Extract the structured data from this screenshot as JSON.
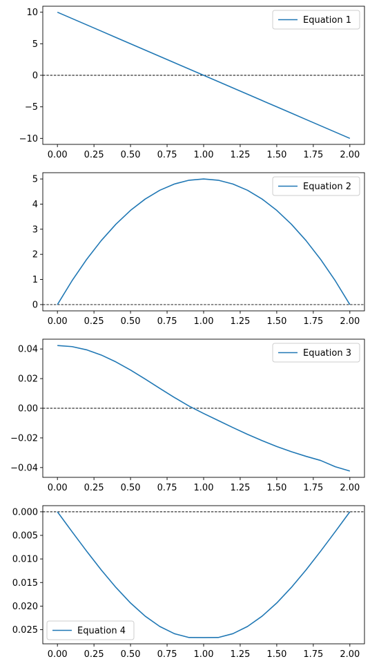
{
  "chart_data": [
    {
      "type": "line",
      "x": [
        0.0,
        0.1,
        0.2,
        0.3,
        0.4,
        0.5,
        0.6,
        0.7,
        0.8,
        0.9,
        1.0,
        1.1,
        1.2,
        1.3,
        1.4,
        1.5,
        1.6,
        1.7,
        1.8,
        1.9,
        2.0
      ],
      "series": [
        {
          "name": "Equation 1",
          "color": "#1f77b4",
          "values": [
            10.0,
            9.0,
            8.0,
            7.0,
            6.0,
            5.0,
            4.0,
            3.0,
            2.0,
            1.0,
            0.0,
            -1.0,
            -2.0,
            -3.0,
            -4.0,
            -5.0,
            -6.0,
            -7.0,
            -8.0,
            -9.0,
            -10.0
          ]
        }
      ],
      "reference_line": {
        "y": 0,
        "style": "dashed",
        "color": "#000000"
      },
      "ylim": [
        -10.95,
        10.95
      ],
      "xlim": [
        -0.1,
        2.1
      ],
      "yticks": [
        -10,
        -5,
        0,
        5,
        10
      ],
      "ytick_labels": [
        "−10",
        "−5",
        "0",
        "5",
        "10"
      ],
      "xticks": [
        0,
        0.25,
        0.5,
        0.75,
        1.0,
        1.25,
        1.5,
        1.75,
        2.0
      ],
      "xtick_labels": [
        "0.00",
        "0.25",
        "0.50",
        "0.75",
        "1.00",
        "1.25",
        "1.50",
        "1.75",
        "2.00"
      ],
      "legend_position": "top-right"
    },
    {
      "type": "line",
      "x": [
        0.0,
        0.1,
        0.2,
        0.3,
        0.4,
        0.5,
        0.6,
        0.7,
        0.8,
        0.9,
        1.0,
        1.1,
        1.2,
        1.3,
        1.4,
        1.5,
        1.6,
        1.7,
        1.8,
        1.9,
        2.0
      ],
      "series": [
        {
          "name": "Equation 2",
          "color": "#1f77b4",
          "values": [
            0.0,
            0.95,
            1.8,
            2.55,
            3.2,
            3.75,
            4.2,
            4.55,
            4.8,
            4.95,
            5.0,
            4.95,
            4.8,
            4.55,
            4.2,
            3.75,
            3.2,
            2.55,
            1.8,
            0.95,
            0.0
          ]
        }
      ],
      "reference_line": {
        "y": 0,
        "style": "dashed",
        "color": "#000000"
      },
      "ylim": [
        -0.25,
        5.25
      ],
      "xlim": [
        -0.1,
        2.1
      ],
      "yticks": [
        0,
        1,
        2,
        3,
        4,
        5
      ],
      "ytick_labels": [
        "0",
        "1",
        "2",
        "3",
        "4",
        "5"
      ],
      "xticks": [
        0,
        0.25,
        0.5,
        0.75,
        1.0,
        1.25,
        1.5,
        1.75,
        2.0
      ],
      "xtick_labels": [
        "0.00",
        "0.25",
        "0.50",
        "0.75",
        "1.00",
        "1.25",
        "1.50",
        "1.75",
        "2.00"
      ],
      "legend_position": "top-right"
    },
    {
      "type": "line",
      "x": [
        0.0,
        0.1,
        0.2,
        0.3,
        0.4,
        0.5,
        0.6,
        0.7,
        0.8,
        0.9,
        1.0,
        1.1,
        1.2,
        1.3,
        1.4,
        1.5,
        1.6,
        1.7,
        1.8,
        1.9,
        2.0
      ],
      "series": [
        {
          "name": "Equation 3",
          "color": "#1f77b4",
          "values": [
            0.04233,
            0.04159,
            0.03941,
            0.0359,
            0.03127,
            0.02578,
            0.01974,
            0.01345,
            0.00726,
            0.00149,
            -0.00351,
            -0.00826,
            -0.01302,
            -0.01758,
            -0.02183,
            -0.02578,
            -0.02932,
            -0.03242,
            -0.03521,
            -0.03942,
            -0.04233
          ]
        }
      ],
      "reference_line": {
        "y": 0,
        "style": "dashed",
        "color": "#000000"
      },
      "ylim": [
        -0.0466,
        0.0466
      ],
      "xlim": [
        -0.1,
        2.1
      ],
      "yticks": [
        -0.04,
        -0.02,
        0.0,
        0.02,
        0.04
      ],
      "ytick_labels": [
        "−0.04",
        "−0.02",
        "0.00",
        "0.02",
        "0.04"
      ],
      "xticks": [
        0,
        0.25,
        0.5,
        0.75,
        1.0,
        1.25,
        1.5,
        1.75,
        2.0
      ],
      "xtick_labels": [
        "0.00",
        "0.25",
        "0.50",
        "0.75",
        "1.00",
        "1.25",
        "1.50",
        "1.75",
        "2.00"
      ],
      "legend_position": "top-right"
    },
    {
      "type": "line",
      "x": [
        0.0,
        0.1,
        0.2,
        0.3,
        0.4,
        0.5,
        0.6,
        0.7,
        0.8,
        0.9,
        1.0,
        1.1,
        1.2,
        1.3,
        1.4,
        1.5,
        1.6,
        1.7,
        1.8,
        1.9,
        2.0
      ],
      "series": [
        {
          "name": "Equation 4",
          "color": "#1f77b4",
          "values": [
            0.0,
            0.00422,
            0.00836,
            0.01235,
            0.01604,
            0.01934,
            0.02213,
            0.02432,
            0.02585,
            0.02666,
            0.02667,
            0.02666,
            0.02585,
            0.02432,
            0.02213,
            0.01934,
            0.01604,
            0.01235,
            0.00836,
            0.00422,
            0.0
          ]
        }
      ],
      "reference_line": {
        "y": 0,
        "style": "dashed",
        "color": "#000000"
      },
      "ylim": [
        0.028,
        -0.0013
      ],
      "inverted_y": true,
      "xlim": [
        -0.1,
        2.1
      ],
      "yticks": [
        0.0,
        0.005,
        0.01,
        0.015,
        0.02,
        0.025
      ],
      "ytick_labels": [
        "0.000",
        "0.005",
        "0.010",
        "0.015",
        "0.020",
        "0.025"
      ],
      "xticks": [
        0,
        0.25,
        0.5,
        0.75,
        1.0,
        1.25,
        1.5,
        1.75,
        2.0
      ],
      "xtick_labels": [
        "0.00",
        "0.25",
        "0.50",
        "0.75",
        "1.00",
        "1.25",
        "1.50",
        "1.75",
        "2.00"
      ],
      "legend_position": "bottom-left"
    }
  ]
}
